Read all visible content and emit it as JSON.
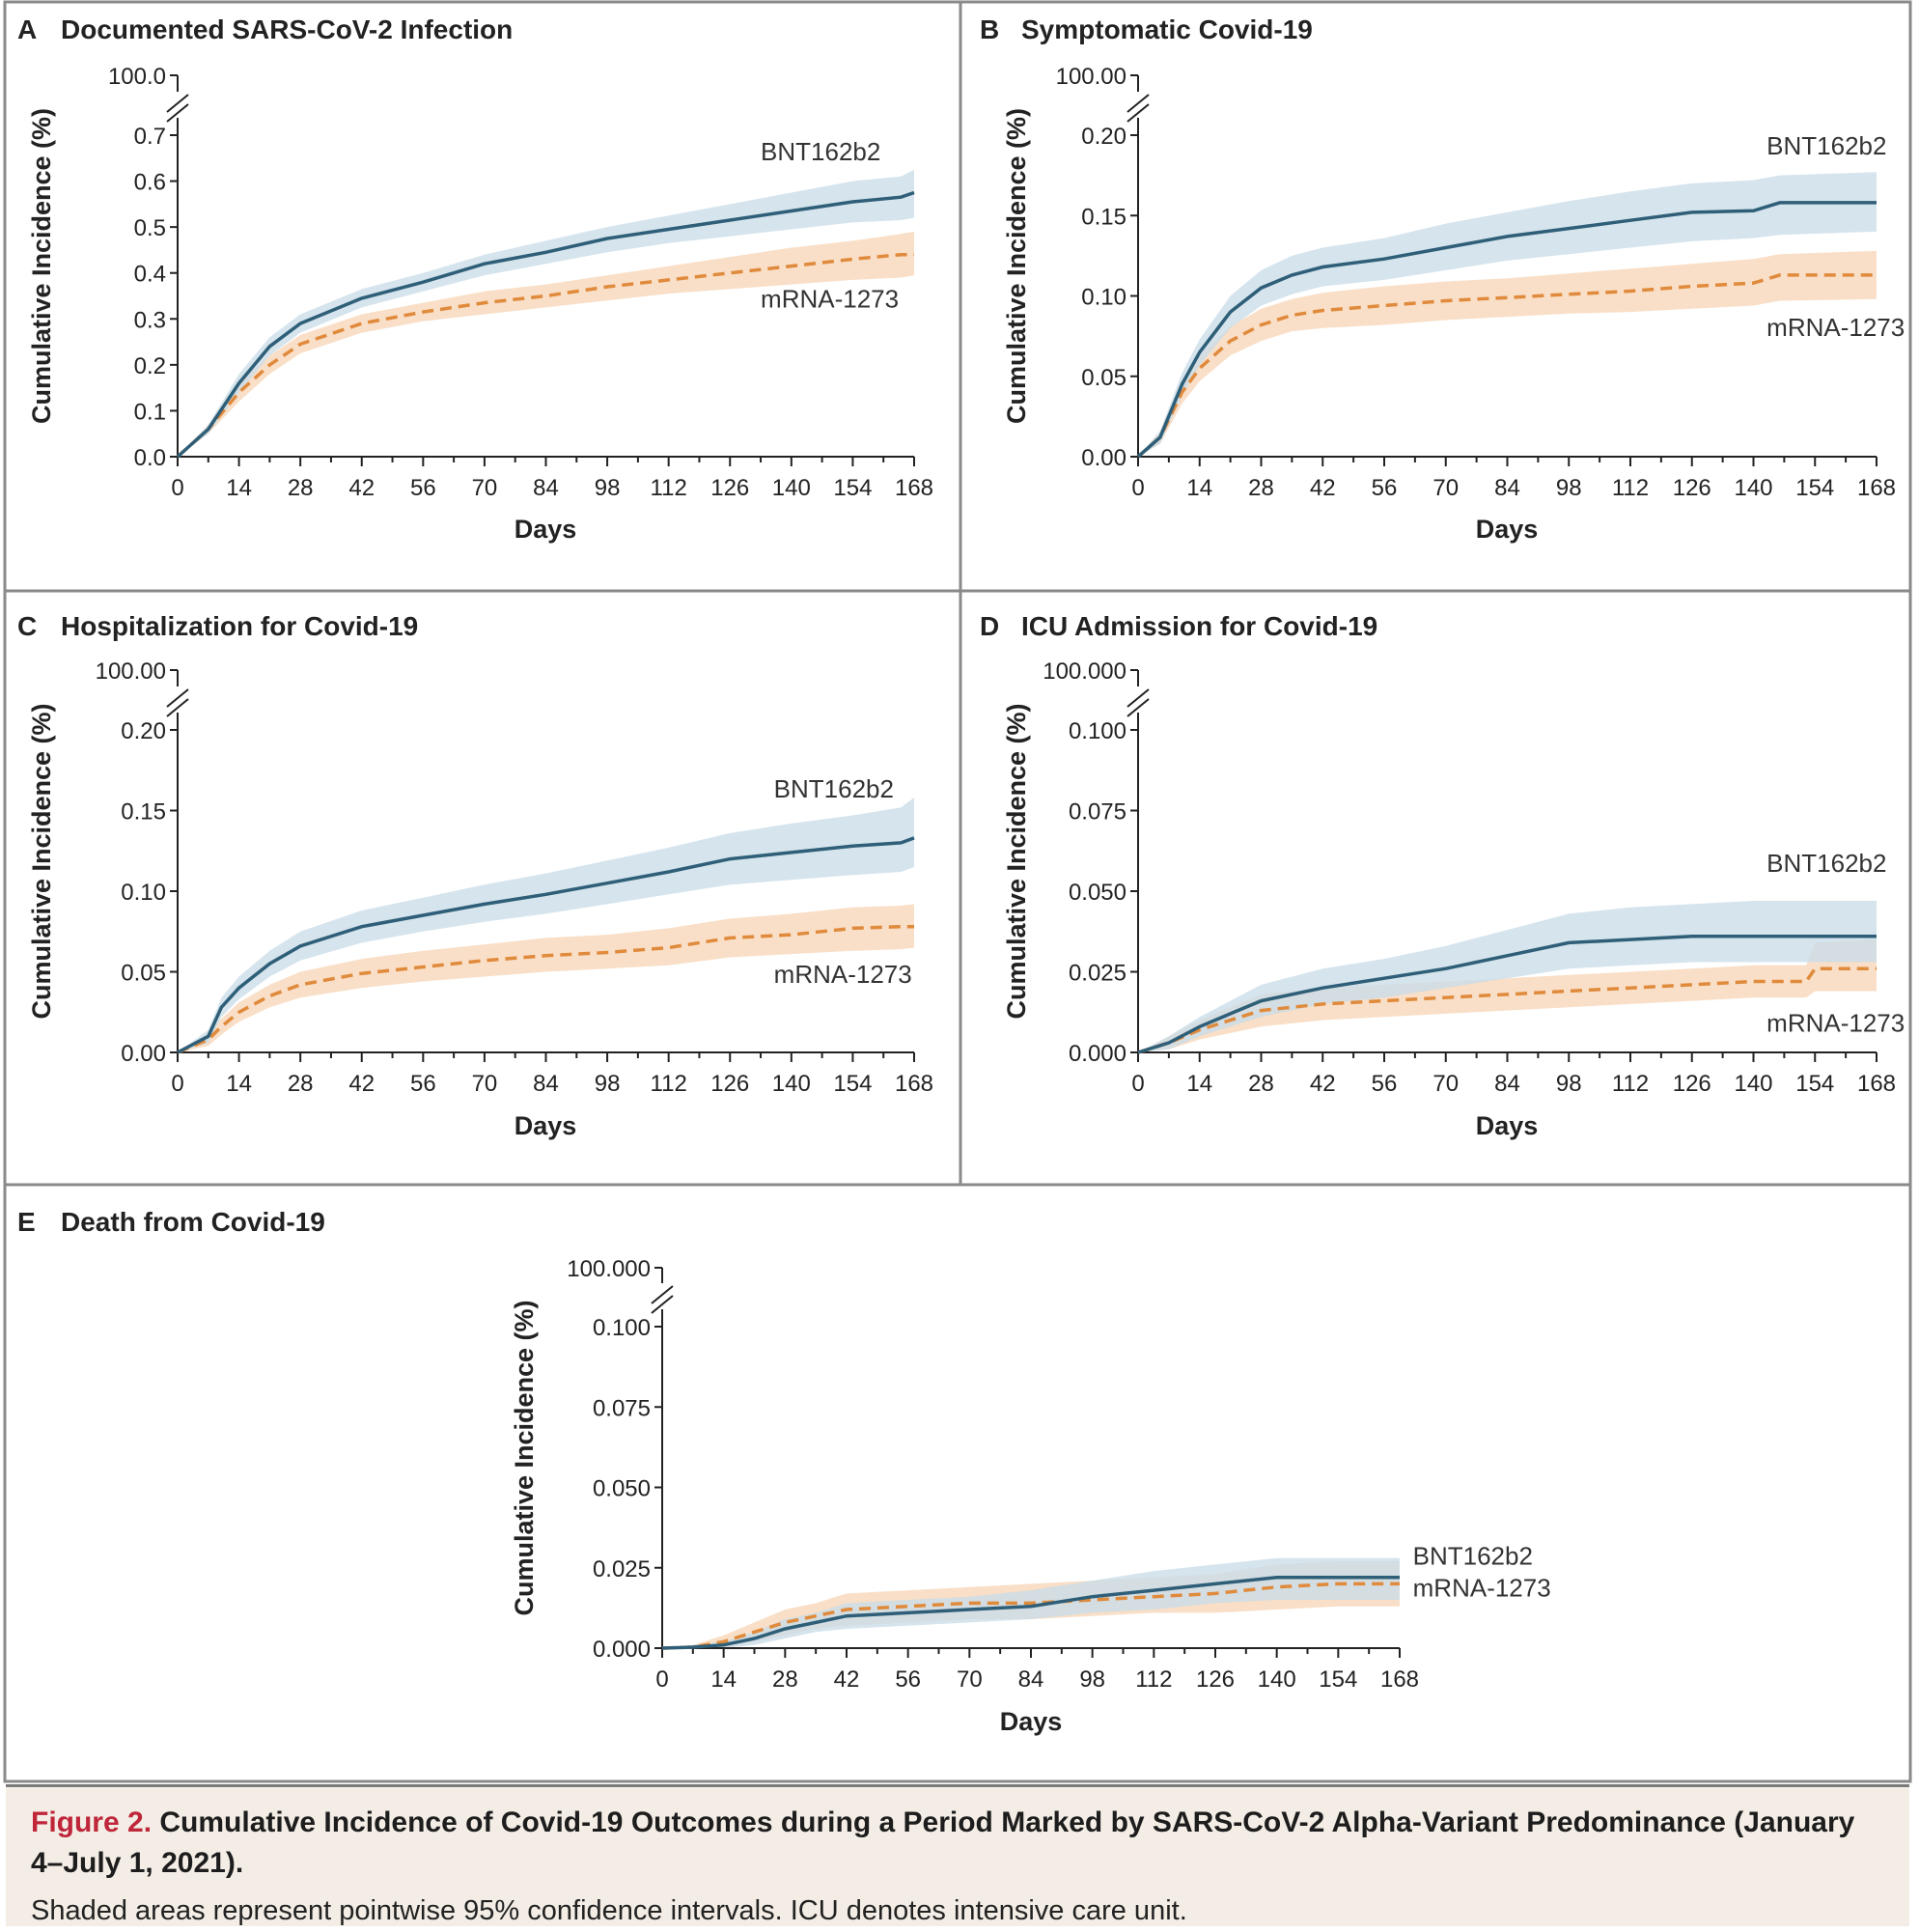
{
  "colors": {
    "bnt": "#2f5f78",
    "bnt_band": "#c9dce8",
    "mrna": "#e08a3c",
    "mrna_band": "#f8dcc1",
    "axis": "#222222",
    "panel_border": "#8a8a8a"
  },
  "caption": {
    "label": "Figure 2.",
    "title": "Cumulative Incidence of Covid-19 Outcomes during a Period Marked by SARS-CoV-2 Alpha-Variant Predominance (January 4–July 1, 2021).",
    "note": "Shaded areas represent pointwise 95% confidence intervals. ICU denotes intensive care unit."
  },
  "chart_data": [
    {
      "type": "line",
      "panel": "A",
      "title": "Documented SARS-CoV-2 Infection",
      "xlabel": "Days",
      "ylabel": "Cumulative Incidence (%)",
      "xlim": [
        0,
        168
      ],
      "ylim": [
        0,
        0.7
      ],
      "x_ticks": [
        "0",
        "14",
        "28",
        "42",
        "56",
        "70",
        "84",
        "98",
        "112",
        "126",
        "140",
        "154",
        "168"
      ],
      "y_ticks": [
        "0.0",
        "0.1",
        "0.2",
        "0.3",
        "0.4",
        "0.5",
        "0.6",
        "0.7"
      ],
      "y_break_label": "100.0",
      "x": [
        0,
        7,
        14,
        21,
        28,
        42,
        56,
        70,
        84,
        98,
        112,
        126,
        140,
        154,
        165,
        168
      ],
      "series": [
        {
          "name": "BNT162b2",
          "values": [
            0,
            0.06,
            0.16,
            0.24,
            0.29,
            0.345,
            0.38,
            0.42,
            0.445,
            0.475,
            0.495,
            0.515,
            0.535,
            0.555,
            0.565,
            0.575
          ],
          "lower": [
            0,
            0.05,
            0.14,
            0.22,
            0.27,
            0.325,
            0.36,
            0.395,
            0.42,
            0.445,
            0.465,
            0.48,
            0.495,
            0.51,
            0.515,
            0.52
          ],
          "upper": [
            0,
            0.07,
            0.18,
            0.26,
            0.31,
            0.365,
            0.4,
            0.44,
            0.47,
            0.5,
            0.525,
            0.55,
            0.575,
            0.6,
            0.61,
            0.625
          ]
        },
        {
          "name": "mRNA-1273",
          "values": [
            0,
            0.06,
            0.14,
            0.2,
            0.245,
            0.29,
            0.315,
            0.335,
            0.35,
            0.37,
            0.385,
            0.4,
            0.415,
            0.43,
            0.44,
            0.44
          ],
          "lower": [
            0,
            0.05,
            0.12,
            0.18,
            0.225,
            0.27,
            0.295,
            0.31,
            0.325,
            0.34,
            0.355,
            0.365,
            0.375,
            0.385,
            0.39,
            0.395
          ],
          "upper": [
            0,
            0.07,
            0.16,
            0.22,
            0.265,
            0.31,
            0.335,
            0.36,
            0.375,
            0.395,
            0.415,
            0.435,
            0.455,
            0.47,
            0.485,
            0.49
          ]
        }
      ],
      "labels": [
        {
          "text": "BNT162b2",
          "x": 133,
          "y": 0.645
        },
        {
          "text": "mRNA-1273",
          "x": 133,
          "y": 0.325
        }
      ]
    },
    {
      "type": "line",
      "panel": "B",
      "title": "Symptomatic Covid-19",
      "xlabel": "Days",
      "ylabel": "Cumulative Incidence (%)",
      "xlim": [
        0,
        168
      ],
      "ylim": [
        0,
        0.2
      ],
      "x_ticks": [
        "0",
        "14",
        "28",
        "42",
        "56",
        "70",
        "84",
        "98",
        "112",
        "126",
        "140",
        "154",
        "168"
      ],
      "y_ticks": [
        "0.00",
        "0.05",
        "0.10",
        "0.15",
        "0.20"
      ],
      "y_break_label": "100.00",
      "x": [
        0,
        5,
        10,
        14,
        21,
        28,
        35,
        42,
        56,
        70,
        84,
        98,
        112,
        126,
        140,
        146,
        168
      ],
      "series": [
        {
          "name": "BNT162b2",
          "values": [
            0,
            0.012,
            0.045,
            0.065,
            0.09,
            0.105,
            0.113,
            0.118,
            0.123,
            0.13,
            0.137,
            0.142,
            0.147,
            0.152,
            0.153,
            0.158,
            0.158
          ],
          "lower": [
            0,
            0.008,
            0.038,
            0.057,
            0.08,
            0.094,
            0.101,
            0.106,
            0.11,
            0.116,
            0.122,
            0.126,
            0.13,
            0.134,
            0.136,
            0.138,
            0.14
          ],
          "upper": [
            0,
            0.016,
            0.052,
            0.073,
            0.1,
            0.116,
            0.125,
            0.13,
            0.136,
            0.145,
            0.152,
            0.159,
            0.165,
            0.17,
            0.172,
            0.175,
            0.177
          ]
        },
        {
          "name": "mRNA-1273",
          "values": [
            0,
            0.012,
            0.04,
            0.055,
            0.072,
            0.082,
            0.088,
            0.091,
            0.094,
            0.097,
            0.099,
            0.101,
            0.103,
            0.106,
            0.108,
            0.113,
            0.113
          ],
          "lower": [
            0,
            0.008,
            0.033,
            0.047,
            0.063,
            0.072,
            0.078,
            0.08,
            0.082,
            0.085,
            0.087,
            0.089,
            0.09,
            0.092,
            0.094,
            0.097,
            0.098
          ],
          "upper": [
            0,
            0.016,
            0.047,
            0.063,
            0.081,
            0.092,
            0.098,
            0.102,
            0.106,
            0.109,
            0.111,
            0.114,
            0.117,
            0.12,
            0.123,
            0.126,
            0.128
          ]
        }
      ],
      "labels": [
        {
          "text": "BNT162b2",
          "x": 143,
          "y": 0.188
        },
        {
          "text": "mRNA-1273",
          "x": 143,
          "y": 0.075
        }
      ]
    },
    {
      "type": "line",
      "panel": "C",
      "title": "Hospitalization for Covid-19",
      "xlabel": "Days",
      "ylabel": "Cumulative Incidence (%)",
      "xlim": [
        0,
        168
      ],
      "ylim": [
        0,
        0.2
      ],
      "x_ticks": [
        "0",
        "14",
        "28",
        "42",
        "56",
        "70",
        "84",
        "98",
        "112",
        "126",
        "140",
        "154",
        "168"
      ],
      "y_ticks": [
        "0.00",
        "0.05",
        "0.10",
        "0.15",
        "0.20"
      ],
      "y_break_label": "100.00",
      "x": [
        0,
        7,
        10,
        14,
        21,
        28,
        42,
        56,
        70,
        84,
        98,
        112,
        126,
        140,
        154,
        165,
        168
      ],
      "series": [
        {
          "name": "BNT162b2",
          "values": [
            0,
            0.01,
            0.028,
            0.04,
            0.055,
            0.066,
            0.078,
            0.085,
            0.092,
            0.098,
            0.105,
            0.112,
            0.12,
            0.124,
            0.128,
            0.13,
            0.133
          ],
          "lower": [
            0,
            0.006,
            0.022,
            0.033,
            0.047,
            0.057,
            0.068,
            0.075,
            0.081,
            0.086,
            0.092,
            0.098,
            0.104,
            0.107,
            0.11,
            0.112,
            0.115
          ],
          "upper": [
            0,
            0.014,
            0.034,
            0.047,
            0.063,
            0.075,
            0.088,
            0.096,
            0.104,
            0.111,
            0.119,
            0.127,
            0.136,
            0.142,
            0.147,
            0.152,
            0.158
          ]
        },
        {
          "name": "mRNA-1273",
          "values": [
            0,
            0.008,
            0.016,
            0.025,
            0.035,
            0.042,
            0.049,
            0.053,
            0.057,
            0.06,
            0.062,
            0.065,
            0.071,
            0.073,
            0.077,
            0.078,
            0.078
          ],
          "lower": [
            0,
            0.004,
            0.011,
            0.019,
            0.028,
            0.034,
            0.04,
            0.044,
            0.047,
            0.05,
            0.052,
            0.054,
            0.059,
            0.061,
            0.063,
            0.064,
            0.065
          ],
          "upper": [
            0,
            0.012,
            0.021,
            0.031,
            0.042,
            0.05,
            0.058,
            0.063,
            0.067,
            0.071,
            0.073,
            0.077,
            0.083,
            0.086,
            0.09,
            0.091,
            0.092
          ]
        }
      ],
      "labels": [
        {
          "text": "BNT162b2",
          "x": 136,
          "y": 0.158
        },
        {
          "text": "mRNA-1273",
          "x": 136,
          "y": 0.043
        }
      ]
    },
    {
      "type": "line",
      "panel": "D",
      "title": "ICU Admission for Covid-19",
      "xlabel": "Days",
      "ylabel": "Cumulative Incidence (%)",
      "xlim": [
        0,
        168
      ],
      "ylim": [
        0,
        0.1
      ],
      "x_ticks": [
        "0",
        "14",
        "28",
        "42",
        "56",
        "70",
        "84",
        "98",
        "112",
        "126",
        "140",
        "154",
        "168"
      ],
      "y_ticks": [
        "0.000",
        "0.025",
        "0.050",
        "0.075",
        "0.100"
      ],
      "y_break_label": "100.000",
      "x": [
        0,
        7,
        14,
        21,
        28,
        42,
        56,
        70,
        84,
        98,
        112,
        126,
        140,
        152,
        154,
        168
      ],
      "series": [
        {
          "name": "BNT162b2",
          "values": [
            0,
            0.003,
            0.008,
            0.012,
            0.016,
            0.02,
            0.023,
            0.026,
            0.03,
            0.034,
            0.035,
            0.036,
            0.036,
            0.036,
            0.036,
            0.036
          ],
          "lower": [
            0,
            0.001,
            0.005,
            0.008,
            0.011,
            0.015,
            0.017,
            0.02,
            0.023,
            0.026,
            0.027,
            0.028,
            0.028,
            0.028,
            0.028,
            0.028
          ],
          "upper": [
            0,
            0.005,
            0.011,
            0.016,
            0.021,
            0.026,
            0.029,
            0.033,
            0.038,
            0.043,
            0.045,
            0.046,
            0.047,
            0.047,
            0.047,
            0.047
          ]
        },
        {
          "name": "mRNA-1273",
          "values": [
            0,
            0.003,
            0.007,
            0.01,
            0.013,
            0.015,
            0.016,
            0.017,
            0.018,
            0.019,
            0.02,
            0.021,
            0.022,
            0.022,
            0.026,
            0.026
          ],
          "lower": [
            0,
            0.001,
            0.004,
            0.006,
            0.008,
            0.01,
            0.011,
            0.012,
            0.013,
            0.014,
            0.015,
            0.016,
            0.017,
            0.017,
            0.019,
            0.019
          ],
          "upper": [
            0,
            0.005,
            0.01,
            0.014,
            0.018,
            0.02,
            0.021,
            0.022,
            0.023,
            0.024,
            0.025,
            0.026,
            0.027,
            0.027,
            0.034,
            0.035
          ]
        }
      ],
      "labels": [
        {
          "text": "BNT162b2",
          "x": 143,
          "y": 0.056
        },
        {
          "text": "mRNA-1273",
          "x": 143,
          "y": 0.0065
        }
      ]
    },
    {
      "type": "line",
      "panel": "E",
      "title": "Death from Covid-19",
      "xlabel": "Days",
      "ylabel": "Cumulative Incidence (%)",
      "xlim": [
        0,
        168
      ],
      "ylim": [
        0,
        0.1
      ],
      "x_ticks": [
        "0",
        "14",
        "28",
        "42",
        "56",
        "70",
        "84",
        "98",
        "112",
        "126",
        "140",
        "154",
        "168"
      ],
      "y_ticks": [
        "0.000",
        "0.025",
        "0.050",
        "0.075",
        "0.100"
      ],
      "y_break_label": "100.000",
      "x": [
        0,
        7,
        14,
        21,
        28,
        35,
        42,
        56,
        70,
        84,
        98,
        112,
        126,
        140,
        154,
        168
      ],
      "series": [
        {
          "name": "BNT162b2",
          "values": [
            0,
            0.0003,
            0.001,
            0.003,
            0.006,
            0.008,
            0.01,
            0.011,
            0.012,
            0.013,
            0.016,
            0.018,
            0.02,
            0.022,
            0.022,
            0.022
          ],
          "lower": [
            0,
            0.0,
            0.0,
            0.001,
            0.003,
            0.005,
            0.006,
            0.007,
            0.008,
            0.009,
            0.011,
            0.012,
            0.014,
            0.015,
            0.015,
            0.015
          ],
          "upper": [
            0,
            0.001,
            0.002,
            0.005,
            0.009,
            0.011,
            0.014,
            0.015,
            0.016,
            0.018,
            0.021,
            0.024,
            0.026,
            0.028,
            0.028,
            0.028
          ]
        },
        {
          "name": "mRNA-1273",
          "values": [
            0,
            0.0003,
            0.002,
            0.005,
            0.008,
            0.01,
            0.012,
            0.013,
            0.014,
            0.014,
            0.015,
            0.016,
            0.017,
            0.019,
            0.02,
            0.02
          ],
          "lower": [
            0,
            0.0,
            0.0,
            0.002,
            0.004,
            0.006,
            0.007,
            0.008,
            0.009,
            0.009,
            0.01,
            0.011,
            0.011,
            0.012,
            0.013,
            0.013
          ],
          "upper": [
            0,
            0.001,
            0.004,
            0.008,
            0.012,
            0.014,
            0.017,
            0.018,
            0.019,
            0.02,
            0.021,
            0.022,
            0.023,
            0.026,
            0.027,
            0.027
          ]
        }
      ],
      "labels": [
        {
          "text": "BNT162b2",
          "x": 171,
          "y": 0.026
        },
        {
          "text": "mRNA-1273",
          "x": 171,
          "y": 0.016
        }
      ]
    }
  ]
}
